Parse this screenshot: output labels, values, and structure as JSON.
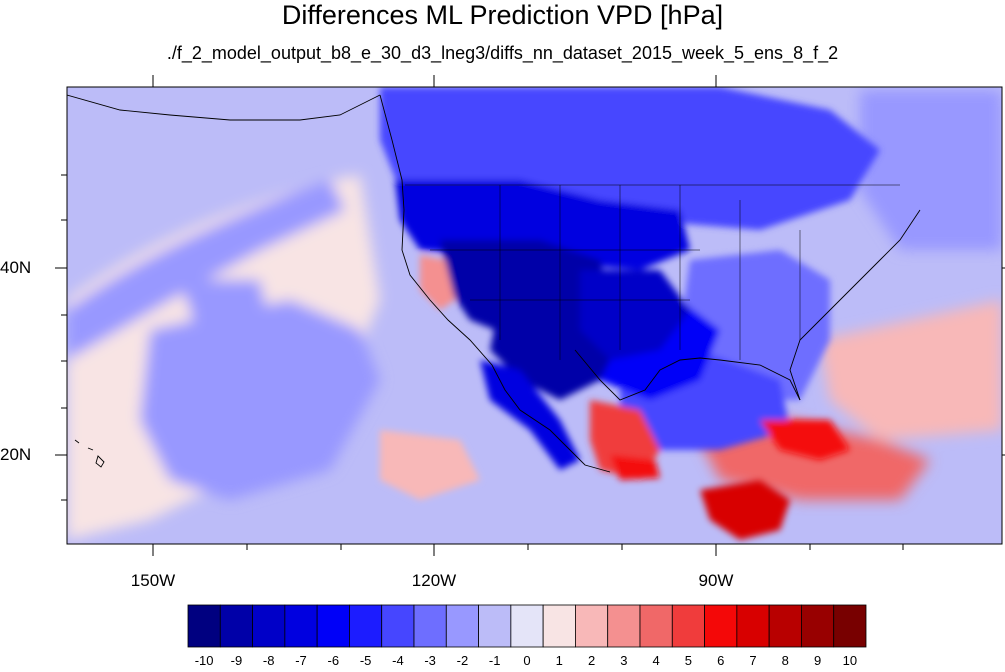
{
  "title": "Differences ML Prediction VPD [hPa]",
  "subtitle": "./f_2_model_output_b8_e_30_d3_lneg3/diffs_nn_dataset_2015_week_5_ens_8_f_2",
  "map": {
    "projection": "cylindrical equidistant",
    "lon_range": [
      -159.5,
      -60
    ],
    "lat_range": [
      10.5,
      59.5
    ],
    "lat_labels": [
      "40N",
      "20N"
    ],
    "lon_labels": [
      "150W",
      "120W",
      "90W"
    ],
    "ocean_base_value": -1,
    "regions": [
      {
        "name": "northwest-interior",
        "value": -7
      },
      {
        "name": "great-basin-rockies",
        "value": -9
      },
      {
        "name": "four-corners",
        "value": -9
      },
      {
        "name": "southern-plains",
        "value": -8
      },
      {
        "name": "texas-gulf-coast",
        "value": -6
      },
      {
        "name": "gulf-of-mexico",
        "value": -4
      },
      {
        "name": "southeast-us",
        "value": -3
      },
      {
        "name": "canada-prairies",
        "value": -4
      },
      {
        "name": "northeast-pacific-band",
        "value": -2
      },
      {
        "name": "subtropical-pacific",
        "value": -2
      },
      {
        "name": "central-california",
        "value": 3
      },
      {
        "name": "west-atlantic",
        "value": 2
      },
      {
        "name": "mexico-pacific-coast",
        "value": 5
      },
      {
        "name": "central-america",
        "value": 7
      },
      {
        "name": "caribbean",
        "value": 4
      }
    ]
  },
  "colorbar": {
    "labels": [
      "-10",
      "-9",
      "-8",
      "-7",
      "-6",
      "-5",
      "-4",
      "-3",
      "-2",
      "-1",
      "0",
      "1",
      "2",
      "3",
      "4",
      "5",
      "6",
      "7",
      "8",
      "9",
      "10"
    ],
    "colors": [
      "#000080",
      "#0000a8",
      "#0000c8",
      "#0000e0",
      "#0000f8",
      "#1c1cff",
      "#4646ff",
      "#6e6eff",
      "#9898ff",
      "#bcbcf8",
      "#e4e4f8",
      "#f8e4e4",
      "#f8b8b8",
      "#f49090",
      "#f06868",
      "#f03c3c",
      "#f40808",
      "#d80000",
      "#b80000",
      "#980000",
      "#780000"
    ]
  }
}
